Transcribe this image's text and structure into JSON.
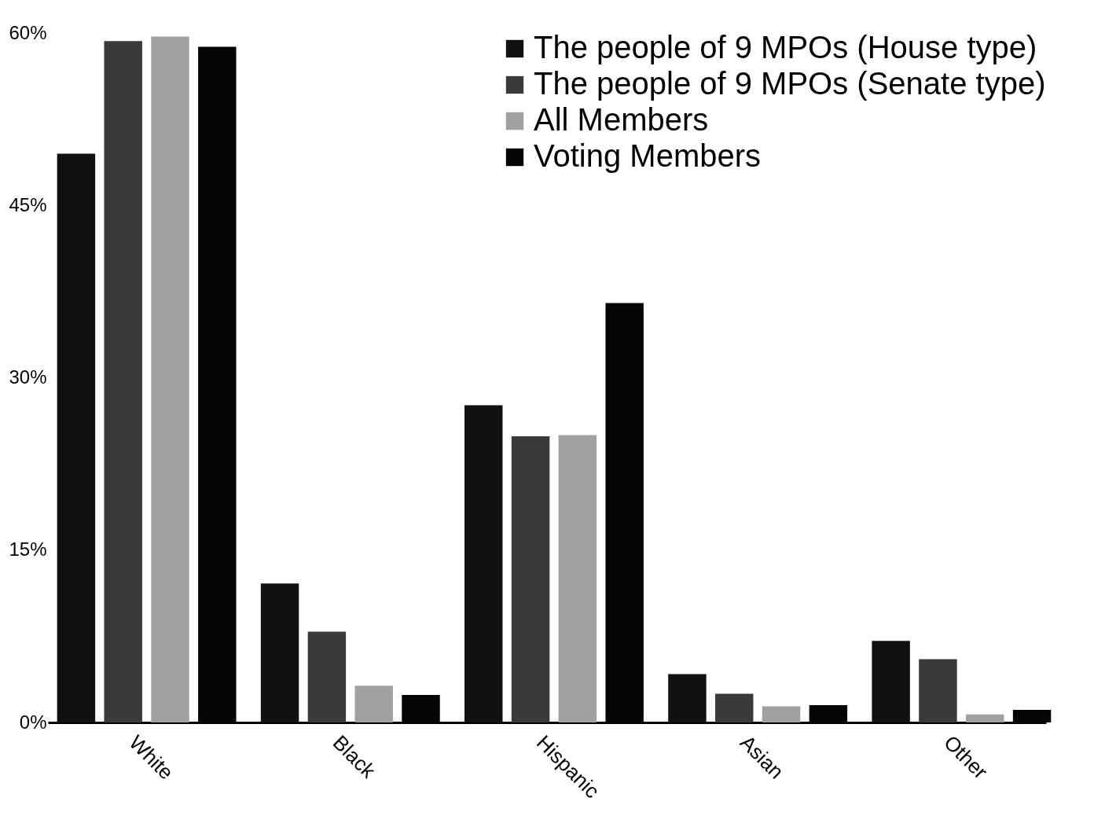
{
  "chart_data": {
    "type": "bar",
    "categories": [
      "White",
      "Black",
      "Hispanic",
      "Asian",
      "Other"
    ],
    "series": [
      {
        "name": "The people of 9 MPOs (House type)",
        "color": "#111111",
        "values": [
          49.5,
          12.1,
          27.6,
          4.2,
          7.1
        ]
      },
      {
        "name": "The people of 9 MPOs (Senate type)",
        "color": "#3a3a3a",
        "values": [
          59.3,
          7.9,
          24.9,
          2.5,
          5.5
        ]
      },
      {
        "name": "All Members",
        "color": "#a0a0a0",
        "values": [
          59.7,
          3.2,
          25,
          1.4,
          0.7
        ]
      },
      {
        "name": "Voting Members",
        "color": "#050505",
        "values": [
          58.8,
          2.4,
          36.5,
          1.5,
          1.1
        ]
      }
    ],
    "ylim": [
      0,
      60
    ],
    "yticks": [
      {
        "value": 0,
        "label": "0%"
      },
      {
        "value": 15,
        "label": "15%"
      },
      {
        "value": 30,
        "label": "30%"
      },
      {
        "value": 45,
        "label": "45%"
      },
      {
        "value": 60,
        "label": "60%"
      }
    ],
    "grid": false,
    "legend": "top right"
  }
}
